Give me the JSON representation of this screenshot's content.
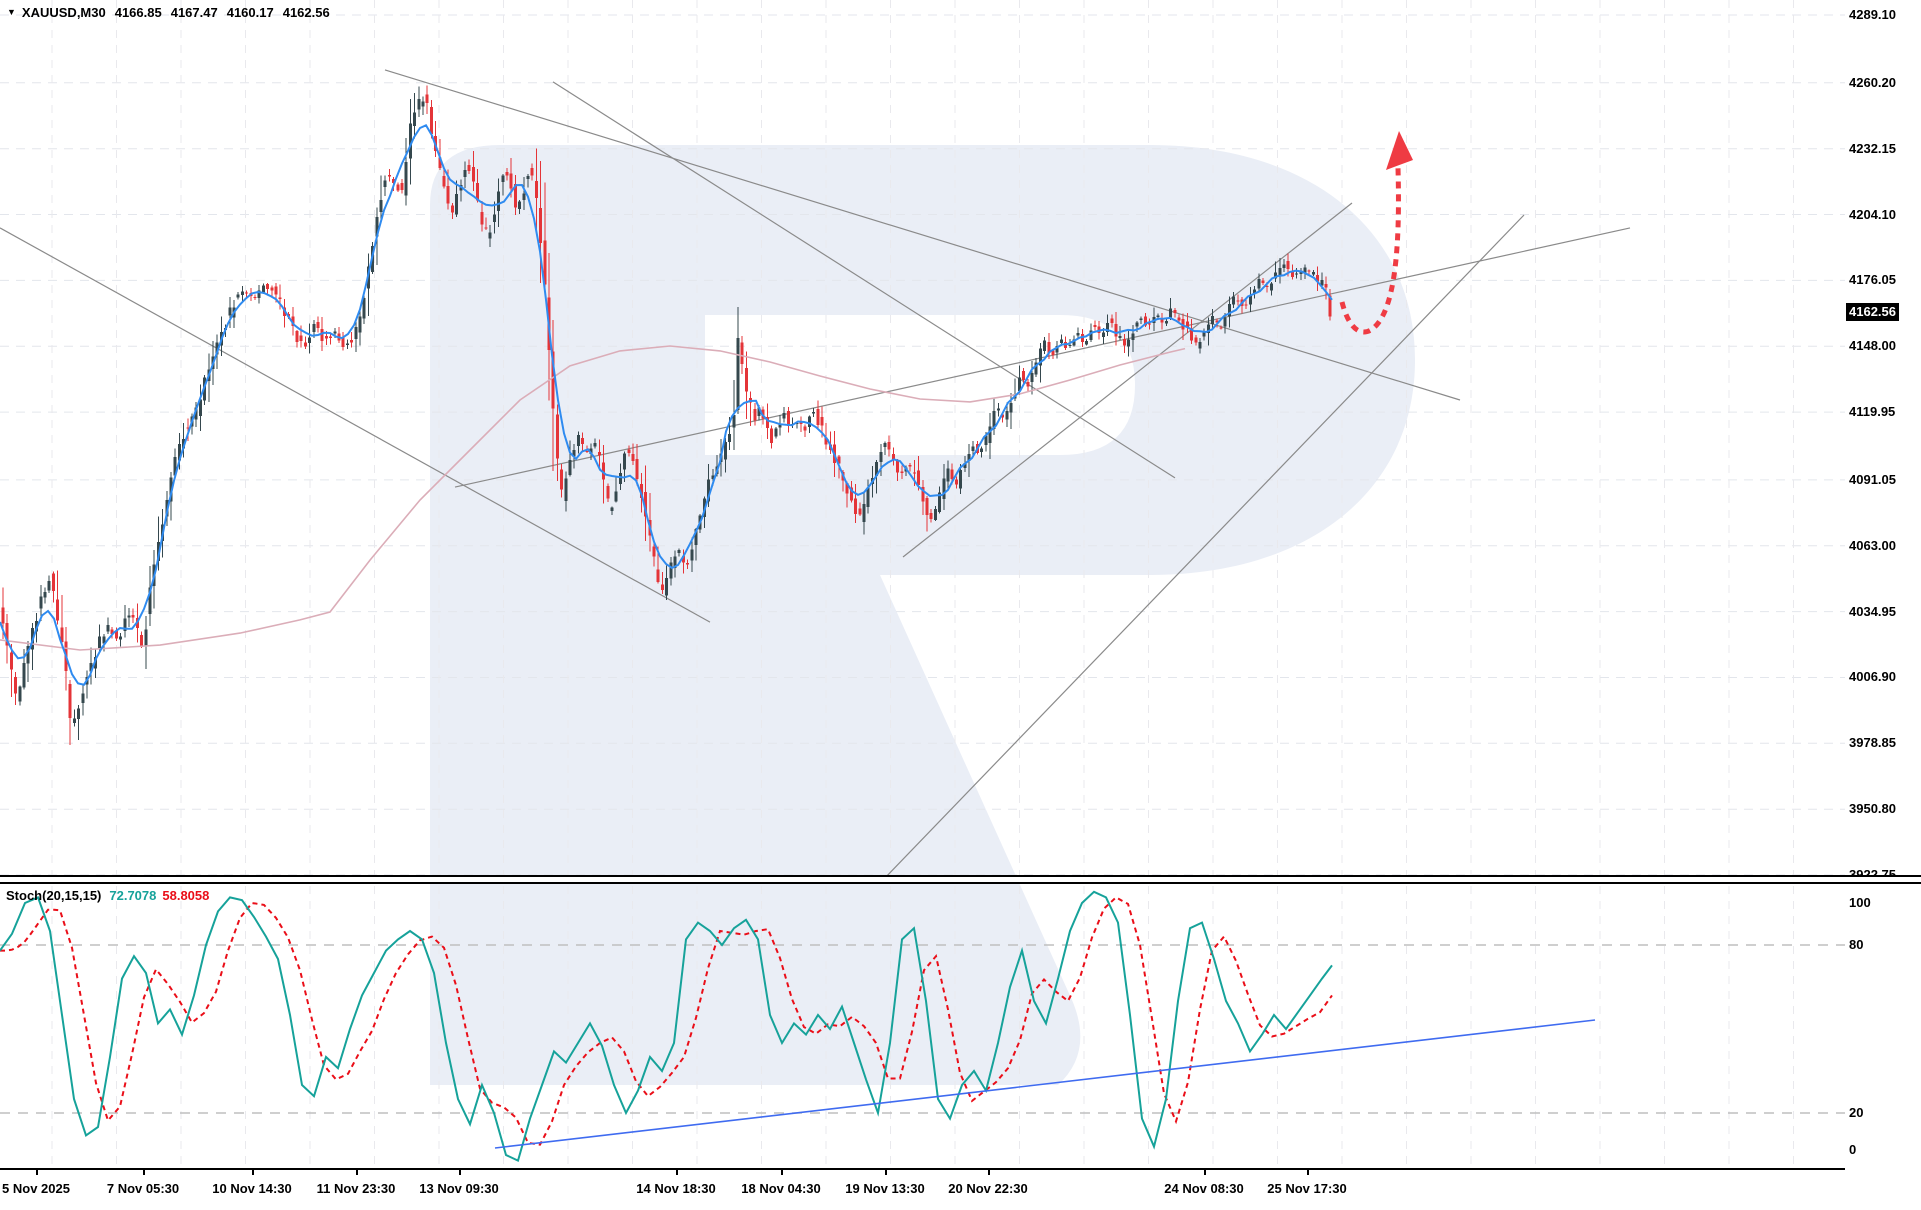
{
  "header": {
    "dropdown_icon": "▼",
    "symbol": "XAUUSD,M30",
    "open": "4166.85",
    "high": "4167.47",
    "low": "4160.17",
    "close": "4162.56"
  },
  "price_axis": {
    "ticks": [
      "4289.10",
      "4260.20",
      "4232.15",
      "4204.10",
      "4176.05",
      "4148.00",
      "4119.95",
      "4091.05",
      "4063.00",
      "4034.95",
      "4006.90",
      "3978.85",
      "3950.80",
      "3922.75"
    ],
    "current": "4162.56"
  },
  "time_axis": {
    "labels": [
      "5 Nov 2025",
      "7 Nov 05:30",
      "10 Nov 14:30",
      "11 Nov 23:30",
      "13 Nov 09:30",
      "14 Nov 18:30",
      "18 Nov 04:30",
      "19 Nov 13:30",
      "20 Nov 22:30",
      "24 Nov 08:30",
      "25 Nov 17:30"
    ]
  },
  "indicator": {
    "name": "Stoch(20,15,15)",
    "value_k": "72.7078",
    "value_d": "58.8058",
    "scale": [
      "100",
      "80",
      "20",
      "0"
    ]
  },
  "colors": {
    "bull": "#35484e",
    "bear": "#e43438",
    "ma_fast": "#2f8bf0",
    "ma_slow": "#dbadb8",
    "trendline": "#8a8a8a",
    "grid_h": "#e3e6ec",
    "grid_v": "#e9e9ed",
    "stoch_k": "#16a29a",
    "stoch_d": "#ea0e18",
    "stoch_trend": "#3f6bf0",
    "stoch_level": "#bfbfbf",
    "arrow": "#ef3b43",
    "watermark": "#eaeef6",
    "badge_bg": "#000000",
    "badge_fg": "#ffffff"
  },
  "chart_data": {
    "type": "candlestick+stochastic",
    "symbol": "XAUUSD",
    "timeframe": "M30",
    "ohlc_current": [
      4166.85,
      4167.47,
      4160.17,
      4162.56
    ],
    "price_axis_range": [
      3922.75,
      4289.1
    ],
    "stoch_params": [
      20,
      15,
      15
    ],
    "stoch_values": [
      72.7078,
      58.8058
    ],
    "stoch_levels": [
      80,
      20
    ],
    "price_path": [
      [
        0,
        4039.9
      ],
      [
        10,
        4018.6
      ],
      [
        18,
        3997.3
      ],
      [
        28,
        4014.3
      ],
      [
        40,
        4035.6
      ],
      [
        52,
        4050.5
      ],
      [
        64,
        4020.7
      ],
      [
        74,
        3984.5
      ],
      [
        84,
        4001.6
      ],
      [
        96,
        4016.5
      ],
      [
        108,
        4029.2
      ],
      [
        120,
        4022.9
      ],
      [
        132,
        4035.6
      ],
      [
        144,
        4018.6
      ],
      [
        154,
        4050.5
      ],
      [
        164,
        4071.8
      ],
      [
        176,
        4097.4
      ],
      [
        188,
        4114.4
      ],
      [
        200,
        4121.7
      ],
      [
        212,
        4141.3
      ],
      [
        224,
        4154.1
      ],
      [
        236,
        4166.8
      ],
      [
        246,
        4172.0
      ],
      [
        256,
        4167.7
      ],
      [
        266,
        4174.1
      ],
      [
        276,
        4171.1
      ],
      [
        286,
        4162.6
      ],
      [
        296,
        4154.1
      ],
      [
        306,
        4147.3
      ],
      [
        316,
        4159.2
      ],
      [
        326,
        4150.7
      ],
      [
        336,
        4154.5
      ],
      [
        346,
        4148.5
      ],
      [
        356,
        4151.5
      ],
      [
        364,
        4163.4
      ],
      [
        372,
        4184.7
      ],
      [
        380,
        4208.2
      ],
      [
        388,
        4220.9
      ],
      [
        396,
        4217.5
      ],
      [
        404,
        4213.7
      ],
      [
        412,
        4240.1
      ],
      [
        420,
        4250.8
      ],
      [
        427,
        4254.2
      ],
      [
        434,
        4238.0
      ],
      [
        441,
        4225.2
      ],
      [
        448,
        4212.4
      ],
      [
        455,
        4203.9
      ],
      [
        462,
        4218.8
      ],
      [
        469,
        4226.1
      ],
      [
        476,
        4217.2
      ],
      [
        483,
        4199.6
      ],
      [
        490,
        4194.1
      ],
      [
        497,
        4206.0
      ],
      [
        504,
        4222.2
      ],
      [
        511,
        4219.7
      ],
      [
        518,
        4206.0
      ],
      [
        525,
        4214.4
      ],
      [
        531,
        4225.0
      ],
      [
        537,
        4217.2
      ],
      [
        543,
        4191.1
      ],
      [
        549,
        4159.2
      ],
      [
        554,
        4129.4
      ],
      [
        559,
        4099.5
      ],
      [
        564,
        4082.5
      ],
      [
        572,
        4101.7
      ],
      [
        580,
        4110.2
      ],
      [
        588,
        4101.7
      ],
      [
        596,
        4108.1
      ],
      [
        604,
        4095.3
      ],
      [
        612,
        4074.0
      ],
      [
        620,
        4091.9
      ],
      [
        628,
        4105.9
      ],
      [
        636,
        4097.4
      ],
      [
        644,
        4084.6
      ],
      [
        652,
        4065.5
      ],
      [
        660,
        4047.6
      ],
      [
        666,
        4043.3
      ],
      [
        672,
        4054.8
      ],
      [
        680,
        4062.1
      ],
      [
        688,
        4053.5
      ],
      [
        696,
        4065.5
      ],
      [
        704,
        4078.2
      ],
      [
        712,
        4091.9
      ],
      [
        720,
        4097.4
      ],
      [
        728,
        4108.1
      ],
      [
        736,
        4117.4
      ],
      [
        740,
        4150.7
      ],
      [
        745,
        4137.9
      ],
      [
        750,
        4125.1
      ],
      [
        756,
        4116.6
      ],
      [
        762,
        4123.0
      ],
      [
        768,
        4114.4
      ],
      [
        774,
        4108.1
      ],
      [
        780,
        4114.4
      ],
      [
        786,
        4120.8
      ],
      [
        792,
        4112.3
      ],
      [
        798,
        4116.6
      ],
      [
        806,
        4111.5
      ],
      [
        814,
        4120.8
      ],
      [
        822,
        4114.4
      ],
      [
        830,
        4105.9
      ],
      [
        838,
        4098.7
      ],
      [
        846,
        4090.2
      ],
      [
        854,
        4081.6
      ],
      [
        862,
        4074.8
      ],
      [
        870,
        4085.9
      ],
      [
        878,
        4098.7
      ],
      [
        886,
        4107.2
      ],
      [
        894,
        4100.4
      ],
      [
        902,
        4093.1
      ],
      [
        910,
        4098.7
      ],
      [
        918,
        4091.9
      ],
      [
        926,
        4081.6
      ],
      [
        934,
        4073.1
      ],
      [
        942,
        4084.6
      ],
      [
        950,
        4095.3
      ],
      [
        958,
        4088.9
      ],
      [
        966,
        4098.7
      ],
      [
        974,
        4107.2
      ],
      [
        982,
        4101.7
      ],
      [
        990,
        4111.5
      ],
      [
        998,
        4121.7
      ],
      [
        1006,
        4116.6
      ],
      [
        1014,
        4126.0
      ],
      [
        1022,
        4137.0
      ],
      [
        1030,
        4130.2
      ],
      [
        1038,
        4141.3
      ],
      [
        1046,
        4149.8
      ],
      [
        1054,
        4143.8
      ],
      [
        1062,
        4151.5
      ],
      [
        1070,
        4146.4
      ],
      [
        1078,
        4154.1
      ],
      [
        1086,
        4149.0
      ],
      [
        1094,
        4157.5
      ],
      [
        1102,
        4152.4
      ],
      [
        1110,
        4159.2
      ],
      [
        1118,
        4154.1
      ],
      [
        1126,
        4148.1
      ],
      [
        1134,
        4154.9
      ],
      [
        1142,
        4160.9
      ],
      [
        1150,
        4155.8
      ],
      [
        1158,
        4161.7
      ],
      [
        1166,
        4157.5
      ],
      [
        1174,
        4164.3
      ],
      [
        1182,
        4159.2
      ],
      [
        1190,
        4153.2
      ],
      [
        1198,
        4148.1
      ],
      [
        1206,
        4154.1
      ],
      [
        1214,
        4160.0
      ],
      [
        1222,
        4154.9
      ],
      [
        1230,
        4162.6
      ],
      [
        1238,
        4169.0
      ],
      [
        1246,
        4164.3
      ],
      [
        1254,
        4170.3
      ],
      [
        1262,
        4176.2
      ],
      [
        1270,
        4172.0
      ],
      [
        1278,
        4178.3
      ],
      [
        1286,
        4183.9
      ],
      [
        1296,
        4177.5
      ],
      [
        1306,
        4181.3
      ],
      [
        1314,
        4179.6
      ],
      [
        1320,
        4174.1
      ],
      [
        1326,
        4175.4
      ],
      [
        1330,
        4168.0
      ],
      [
        1332,
        4162.6
      ]
    ],
    "ma_slow_path": [
      [
        0,
        4022.9
      ],
      [
        80,
        4018.6
      ],
      [
        160,
        4020.7
      ],
      [
        240,
        4025.8
      ],
      [
        300,
        4031.4
      ],
      [
        330,
        4034.8
      ],
      [
        370,
        4056.9
      ],
      [
        420,
        4082.5
      ],
      [
        470,
        4103.8
      ],
      [
        520,
        4125.1
      ],
      [
        570,
        4139.6
      ],
      [
        620,
        4146.0
      ],
      [
        670,
        4148.1
      ],
      [
        720,
        4146.0
      ],
      [
        770,
        4141.3
      ],
      [
        820,
        4135.3
      ],
      [
        870,
        4129.8
      ],
      [
        920,
        4125.5
      ],
      [
        970,
        4124.3
      ],
      [
        1020,
        4127.7
      ],
      [
        1070,
        4133.6
      ],
      [
        1120,
        4140.0
      ],
      [
        1170,
        4145.5
      ],
      [
        1185,
        4147.0
      ]
    ],
    "trendlines": [
      {
        "name": "descending-1",
        "pts": [
          385,
          4265.7,
          1460,
          4125.1
        ]
      },
      {
        "name": "descending-2",
        "pts": [
          553,
          4260.6,
          1175,
          4091.9
        ]
      },
      {
        "name": "descending-left",
        "pts": [
          0,
          4198.4,
          710,
          4030.5
        ]
      },
      {
        "name": "ascending-shallow",
        "pts": [
          455,
          4088.0,
          1630,
          4198.4
        ]
      },
      {
        "name": "ascending-steep",
        "pts": [
          903,
          4058.2,
          1352,
          4209.0
        ]
      },
      {
        "name": "ascending-long",
        "pts": [
          885,
          3921.5,
          1524,
          4203.9
        ]
      }
    ],
    "stoch_k_path": [
      [
        0,
        78
      ],
      [
        12,
        84
      ],
      [
        25,
        95
      ],
      [
        38,
        97
      ],
      [
        50,
        85
      ],
      [
        62,
        55
      ],
      [
        74,
        25
      ],
      [
        86,
        12
      ],
      [
        98,
        15
      ],
      [
        110,
        40
      ],
      [
        122,
        68
      ],
      [
        134,
        76
      ],
      [
        146,
        70
      ],
      [
        158,
        52
      ],
      [
        170,
        57
      ],
      [
        182,
        48
      ],
      [
        194,
        62
      ],
      [
        206,
        80
      ],
      [
        218,
        92
      ],
      [
        230,
        97
      ],
      [
        242,
        96
      ],
      [
        254,
        90
      ],
      [
        266,
        83
      ],
      [
        278,
        75
      ],
      [
        290,
        55
      ],
      [
        302,
        30
      ],
      [
        314,
        26
      ],
      [
        326,
        40
      ],
      [
        338,
        36
      ],
      [
        350,
        50
      ],
      [
        362,
        62
      ],
      [
        374,
        70
      ],
      [
        386,
        78
      ],
      [
        398,
        82
      ],
      [
        410,
        85
      ],
      [
        422,
        82
      ],
      [
        434,
        70
      ],
      [
        446,
        45
      ],
      [
        458,
        25
      ],
      [
        470,
        16
      ],
      [
        482,
        30
      ],
      [
        494,
        20
      ],
      [
        506,
        5
      ],
      [
        518,
        3
      ],
      [
        530,
        18
      ],
      [
        542,
        30
      ],
      [
        554,
        42
      ],
      [
        566,
        38
      ],
      [
        578,
        45
      ],
      [
        590,
        52
      ],
      [
        602,
        44
      ],
      [
        614,
        30
      ],
      [
        626,
        20
      ],
      [
        638,
        28
      ],
      [
        650,
        40
      ],
      [
        662,
        35
      ],
      [
        674,
        45
      ],
      [
        686,
        82
      ],
      [
        698,
        88
      ],
      [
        710,
        85
      ],
      [
        722,
        80
      ],
      [
        734,
        86
      ],
      [
        746,
        89
      ],
      [
        758,
        82
      ],
      [
        770,
        55
      ],
      [
        782,
        45
      ],
      [
        794,
        52
      ],
      [
        806,
        48
      ],
      [
        818,
        55
      ],
      [
        830,
        50
      ],
      [
        842,
        58
      ],
      [
        854,
        45
      ],
      [
        866,
        32
      ],
      [
        878,
        20
      ],
      [
        890,
        45
      ],
      [
        902,
        82
      ],
      [
        914,
        86
      ],
      [
        926,
        60
      ],
      [
        938,
        25
      ],
      [
        950,
        18
      ],
      [
        962,
        30
      ],
      [
        974,
        35
      ],
      [
        986,
        28
      ],
      [
        998,
        45
      ],
      [
        1010,
        65
      ],
      [
        1022,
        78
      ],
      [
        1034,
        60
      ],
      [
        1046,
        52
      ],
      [
        1058,
        68
      ],
      [
        1070,
        85
      ],
      [
        1082,
        95
      ],
      [
        1094,
        99
      ],
      [
        1106,
        97
      ],
      [
        1118,
        88
      ],
      [
        1130,
        55
      ],
      [
        1142,
        18
      ],
      [
        1154,
        8
      ],
      [
        1166,
        25
      ],
      [
        1178,
        60
      ],
      [
        1190,
        86
      ],
      [
        1202,
        88
      ],
      [
        1214,
        75
      ],
      [
        1226,
        60
      ],
      [
        1238,
        52
      ],
      [
        1250,
        42
      ],
      [
        1262,
        48
      ],
      [
        1274,
        55
      ],
      [
        1286,
        50
      ],
      [
        1298,
        56
      ],
      [
        1310,
        62
      ],
      [
        1322,
        68
      ],
      [
        1332,
        72.7
      ]
    ],
    "stoch_trendline": [
      [
        495,
        7.5
      ],
      [
        1595,
        53.2
      ]
    ],
    "forecast_arrow": {
      "name": "up-forecast-arrow",
      "color": "#ef3b43"
    }
  }
}
